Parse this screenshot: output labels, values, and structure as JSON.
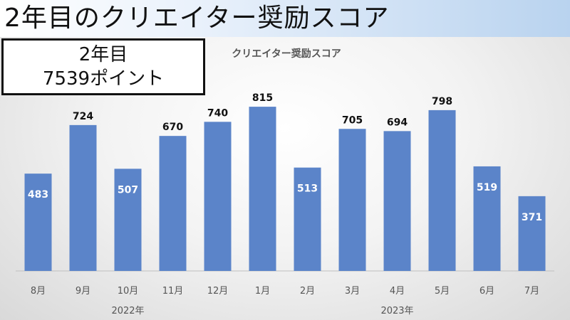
{
  "page_title": "2年目のクリエイター奨励スコア",
  "summary": {
    "line1": "2年目",
    "line2": "7539ポイント"
  },
  "colors": {
    "bar": "#5b84c9",
    "label_inside": "#ffffff",
    "label_outside": "#111111",
    "axis": "#bfbfbf",
    "tick_text": "#555555"
  },
  "chart_data": {
    "type": "bar",
    "title": "クリエイター奨励スコア",
    "categories": [
      "8月",
      "9月",
      "10月",
      "11月",
      "12月",
      "1月",
      "2月",
      "3月",
      "4月",
      "5月",
      "6月",
      "7月"
    ],
    "values": [
      483,
      724,
      507,
      670,
      740,
      815,
      513,
      705,
      694,
      798,
      519,
      371
    ],
    "year_groups": [
      {
        "label": "2022年",
        "from": 0,
        "to": 4
      },
      {
        "label": "2023年",
        "from": 5,
        "to": 11
      }
    ],
    "ylim": [
      0,
      900
    ],
    "grid": false,
    "legend": "none"
  }
}
